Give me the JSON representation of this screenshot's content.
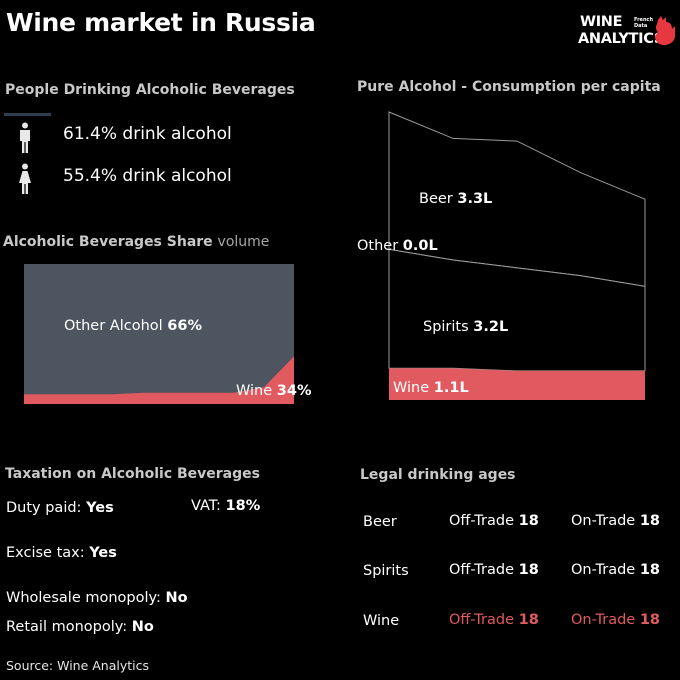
{
  "title": "Wine market in Russia",
  "logo": {
    "line1": "WINE",
    "line2": "ANALYTICS",
    "small1": "French",
    "small2": "Data"
  },
  "drinking": {
    "heading": "People Drinking Alcoholic Beverages",
    "male": {
      "icon": "male-person-icon",
      "value": "61.4%",
      "text": "drink alcohol"
    },
    "female": {
      "icon": "female-person-icon",
      "value": "55.4%",
      "text": "drink alcohol"
    }
  },
  "share": {
    "heading": "Alcoholic Beverages Share",
    "heading_soft": "volume",
    "other_label": "Other Alcohol",
    "other_pct": "66%",
    "wine_label": "Wine",
    "wine_pct": "34%",
    "colors": {
      "other": "#4d5560",
      "wine": "#e05a5f"
    }
  },
  "consumption": {
    "heading": "Pure Alcohol - Consumption per capita",
    "beer_label": "Beer",
    "beer_value": "3.3L",
    "other_label": "Other",
    "other_value": "0.0L",
    "spirits_label": "Spirits",
    "spirits_value": "3.2L",
    "wine_label": "Wine",
    "wine_value": "1.1L"
  },
  "taxation": {
    "heading": "Taxation on Alcoholic Beverages",
    "duty_label": "Duty paid:",
    "duty_value": "Yes",
    "vat_label": "VAT:",
    "vat_value": "18%",
    "excise_label": "Excise tax:",
    "excise_value": "Yes",
    "wholesale_label": "Wholesale monopoly:",
    "wholesale_value": "No",
    "retail_label": "Retail monopoly:",
    "retail_value": "No"
  },
  "ages": {
    "heading": "Legal drinking ages",
    "rows": [
      {
        "name": "Beer",
        "off_label": "Off-Trade",
        "off_value": "18",
        "on_label": "On-Trade",
        "on_value": "18"
      },
      {
        "name": "Spirits",
        "off_label": "Off-Trade",
        "off_value": "18",
        "on_label": "On-Trade",
        "on_value": "18"
      },
      {
        "name": "Wine",
        "off_label": "Off-Trade",
        "off_value": "18",
        "on_label": "On-Trade",
        "on_value": "18"
      }
    ]
  },
  "source": "Source: Wine Analytics",
  "chart_data": [
    {
      "type": "area",
      "title": "Alcoholic Beverages Share volume",
      "x": [
        1,
        2,
        3,
        4,
        5,
        6,
        7,
        8,
        9,
        10
      ],
      "ylim": [
        0,
        100
      ],
      "series": [
        {
          "name": "Wine",
          "values": [
            7,
            7,
            7,
            7,
            8,
            8,
            8,
            8,
            12,
            34
          ]
        },
        {
          "name": "Other Alcohol",
          "values": [
            93,
            93,
            93,
            93,
            92,
            92,
            92,
            92,
            88,
            66
          ]
        }
      ]
    },
    {
      "type": "area",
      "title": "Pure Alcohol - Consumption per capita",
      "x": [
        1,
        2,
        3,
        4,
        5
      ],
      "series": [
        {
          "name": "Wine",
          "values": [
            1.2,
            1.2,
            1.1,
            1.1,
            1.1
          ]
        },
        {
          "name": "Spirits",
          "values": [
            4.5,
            4.1,
            3.9,
            3.6,
            3.2
          ]
        },
        {
          "name": "Other",
          "values": [
            0.0,
            0.0,
            0.0,
            0.0,
            0.0
          ]
        },
        {
          "name": "Beer",
          "values": [
            5.2,
            4.6,
            4.8,
            3.9,
            3.3
          ]
        }
      ]
    }
  ]
}
